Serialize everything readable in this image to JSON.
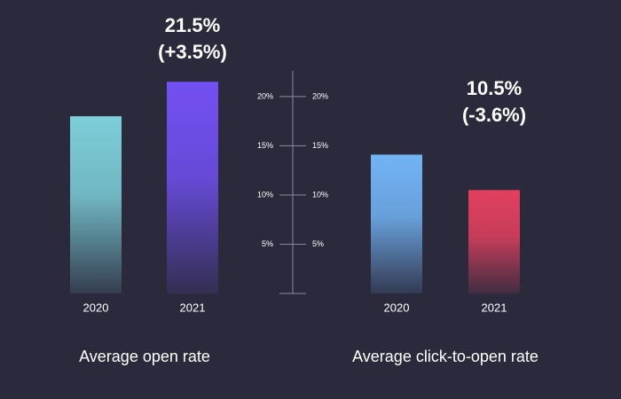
{
  "chart_data": [
    {
      "type": "bar",
      "title": "Average open rate",
      "categories": [
        "2020",
        "2021"
      ],
      "values": [
        18,
        21.5
      ],
      "value_labels": [
        null,
        "21.5%"
      ],
      "annotation": "(+3.5%)",
      "colors": [
        "#7ccfd9",
        "#7250f2"
      ],
      "ylim": [
        0,
        22.6
      ],
      "yticks": [
        {
          "value": 5,
          "label": "5%"
        },
        {
          "value": 10,
          "label": "10%"
        },
        {
          "value": 15,
          "label": "15%"
        },
        {
          "value": 20,
          "label": "20%"
        }
      ]
    },
    {
      "type": "bar",
      "title": "Average click-to-open rate",
      "categories": [
        "2020",
        "2021"
      ],
      "values": [
        14.1,
        10.5
      ],
      "value_labels": [
        null,
        "10.5%"
      ],
      "annotation": "(-3.6%)",
      "colors": [
        "#72b4f5",
        "#e2405f"
      ],
      "ylim": [
        0,
        22.6
      ],
      "yticks": [
        {
          "value": 5,
          "label": "5%"
        },
        {
          "value": 10,
          "label": "10%"
        },
        {
          "value": 15,
          "label": "15%"
        },
        {
          "value": 20,
          "label": "20%"
        }
      ]
    }
  ]
}
